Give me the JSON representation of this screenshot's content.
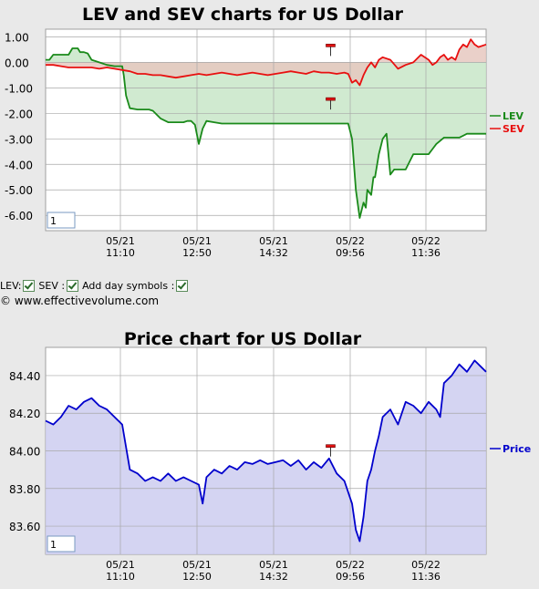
{
  "controls": {
    "lev_label": "LEV:",
    "sev_label": "SEV :",
    "day_symbols_label": "Add day symbols :"
  },
  "copyright": "© www.effectivevolume.com",
  "chart_data": [
    {
      "type": "line",
      "title": "LEV and SEV charts for US Dollar",
      "xlabel": "",
      "ylabel": "",
      "ylim": [
        -6.6,
        1.3
      ],
      "yticks": [
        1.0,
        0.0,
        -1.0,
        -2.0,
        -3.0,
        -4.0,
        -5.0,
        -6.0
      ],
      "ytick_labels": [
        "1.00",
        "0.00",
        "-1.00",
        "-2.00",
        "-3.00",
        "-4.00",
        "-5.00",
        "-6.00"
      ],
      "xticks": [
        {
          "date": "05/21",
          "time": "11:10"
        },
        {
          "date": "05/21",
          "time": "12:50"
        },
        {
          "date": "05/21",
          "time": "14:32"
        },
        {
          "date": "05/22",
          "time": "09:56"
        },
        {
          "date": "05/22",
          "time": "11:36"
        }
      ],
      "grid": true,
      "legend_position": "right",
      "input_value": "1",
      "day_markers": [
        3.72
      ],
      "series": [
        {
          "name": "LEV",
          "color": "#1a8a1a",
          "fill": "#c8e6c8",
          "x": [
            0,
            0.05,
            0.1,
            0.2,
            0.3,
            0.35,
            0.42,
            0.45,
            0.5,
            0.55,
            0.6,
            0.7,
            0.8,
            0.9,
            1.0,
            1.02,
            1.05,
            1.1,
            1.2,
            1.35,
            1.4,
            1.5,
            1.6,
            1.7,
            1.8,
            1.85,
            1.9,
            1.95,
            2.0,
            2.05,
            2.1,
            2.2,
            2.3,
            2.4,
            2.5,
            2.6,
            2.8,
            3.0,
            3.2,
            3.4,
            3.6,
            3.8,
            3.95,
            4.0,
            4.05,
            4.1,
            4.15,
            4.18,
            4.2,
            4.25,
            4.28,
            4.3,
            4.35,
            4.4,
            4.45,
            4.5,
            4.55,
            4.6,
            4.7,
            4.8,
            4.9,
            5.0,
            5.05,
            5.1,
            5.2,
            5.3,
            5.4,
            5.5,
            5.6,
            5.75
          ],
          "y": [
            0.1,
            0.1,
            0.3,
            0.3,
            0.3,
            0.55,
            0.55,
            0.4,
            0.4,
            0.35,
            0.1,
            0.0,
            -0.1,
            -0.15,
            -0.15,
            -0.5,
            -1.3,
            -1.8,
            -1.85,
            -1.85,
            -1.9,
            -2.2,
            -2.35,
            -2.35,
            -2.35,
            -2.3,
            -2.3,
            -2.45,
            -3.2,
            -2.6,
            -2.3,
            -2.35,
            -2.4,
            -2.4,
            -2.4,
            -2.4,
            -2.4,
            -2.4,
            -2.4,
            -2.4,
            -2.4,
            -2.4,
            -2.4,
            -3.0,
            -5.0,
            -6.1,
            -5.5,
            -5.7,
            -5.0,
            -5.2,
            -4.5,
            -4.5,
            -3.6,
            -3.0,
            -2.8,
            -4.4,
            -4.2,
            -4.2,
            -4.2,
            -3.6,
            -3.6,
            -3.6,
            -3.4,
            -3.2,
            -2.95,
            -2.95,
            -2.95,
            -2.8,
            -2.8,
            -2.8
          ]
        },
        {
          "name": "SEV",
          "color": "#e81010",
          "fill": "#e6c8c0",
          "x": [
            0,
            0.1,
            0.2,
            0.3,
            0.4,
            0.5,
            0.6,
            0.7,
            0.8,
            0.9,
            1.0,
            1.1,
            1.2,
            1.3,
            1.4,
            1.5,
            1.6,
            1.7,
            1.8,
            1.9,
            2.0,
            2.1,
            2.2,
            2.3,
            2.4,
            2.5,
            2.6,
            2.7,
            2.8,
            2.9,
            3.0,
            3.1,
            3.2,
            3.3,
            3.4,
            3.5,
            3.6,
            3.7,
            3.8,
            3.9,
            3.95,
            4.0,
            4.05,
            4.1,
            4.15,
            4.2,
            4.25,
            4.3,
            4.35,
            4.4,
            4.5,
            4.6,
            4.7,
            4.8,
            4.9,
            5.0,
            5.05,
            5.1,
            5.15,
            5.2,
            5.25,
            5.3,
            5.35,
            5.4,
            5.45,
            5.5,
            5.55,
            5.6,
            5.65,
            5.75
          ],
          "y": [
            -0.1,
            -0.1,
            -0.15,
            -0.2,
            -0.2,
            -0.2,
            -0.2,
            -0.25,
            -0.2,
            -0.25,
            -0.3,
            -0.35,
            -0.45,
            -0.45,
            -0.5,
            -0.5,
            -0.55,
            -0.6,
            -0.55,
            -0.5,
            -0.45,
            -0.5,
            -0.45,
            -0.4,
            -0.45,
            -0.5,
            -0.45,
            -0.4,
            -0.45,
            -0.5,
            -0.45,
            -0.4,
            -0.35,
            -0.4,
            -0.45,
            -0.35,
            -0.4,
            -0.4,
            -0.45,
            -0.4,
            -0.45,
            -0.8,
            -0.7,
            -0.9,
            -0.5,
            -0.2,
            0.0,
            -0.2,
            0.1,
            0.2,
            0.1,
            -0.25,
            -0.1,
            0.0,
            0.3,
            0.1,
            -0.1,
            0.0,
            0.2,
            0.3,
            0.1,
            0.2,
            0.1,
            0.5,
            0.7,
            0.6,
            0.9,
            0.7,
            0.6,
            0.7
          ]
        }
      ]
    },
    {
      "type": "area",
      "title": "Price chart for US Dollar",
      "xlabel": "",
      "ylabel": "",
      "ylim": [
        83.45,
        84.55
      ],
      "yticks": [
        84.4,
        84.2,
        84.0,
        83.8,
        83.6
      ],
      "ytick_labels": [
        "84.40",
        "84.20",
        "84.00",
        "83.80",
        "83.60"
      ],
      "xticks": [
        {
          "date": "05/21",
          "time": "11:10"
        },
        {
          "date": "05/21",
          "time": "12:50"
        },
        {
          "date": "05/21",
          "time": "14:32"
        },
        {
          "date": "05/22",
          "time": "09:56"
        },
        {
          "date": "05/22",
          "time": "11:36"
        }
      ],
      "grid": true,
      "legend_position": "right",
      "input_value": "1",
      "day_markers": [
        3.72
      ],
      "series": [
        {
          "name": "Price",
          "color": "#0000cc",
          "fill": "#cdcdf0",
          "x": [
            0,
            0.1,
            0.2,
            0.3,
            0.4,
            0.5,
            0.6,
            0.7,
            0.8,
            0.9,
            1.0,
            1.05,
            1.1,
            1.2,
            1.3,
            1.4,
            1.5,
            1.6,
            1.7,
            1.8,
            1.9,
            2.0,
            2.05,
            2.1,
            2.2,
            2.3,
            2.4,
            2.5,
            2.6,
            2.7,
            2.8,
            2.9,
            3.0,
            3.1,
            3.2,
            3.3,
            3.4,
            3.5,
            3.6,
            3.7,
            3.8,
            3.9,
            4.0,
            4.05,
            4.1,
            4.15,
            4.2,
            4.25,
            4.3,
            4.35,
            4.4,
            4.5,
            4.6,
            4.7,
            4.8,
            4.9,
            5.0,
            5.1,
            5.15,
            5.2,
            5.3,
            5.4,
            5.5,
            5.6,
            5.75
          ],
          "y": [
            84.16,
            84.14,
            84.18,
            84.24,
            84.22,
            84.26,
            84.28,
            84.24,
            84.22,
            84.18,
            84.14,
            84.02,
            83.9,
            83.88,
            83.84,
            83.86,
            83.84,
            83.88,
            83.84,
            83.86,
            83.84,
            83.82,
            83.72,
            83.86,
            83.9,
            83.88,
            83.92,
            83.9,
            83.94,
            83.93,
            83.95,
            83.93,
            83.94,
            83.95,
            83.92,
            83.95,
            83.9,
            83.94,
            83.91,
            83.96,
            83.88,
            83.84,
            83.72,
            83.58,
            83.52,
            83.65,
            83.84,
            83.9,
            84.0,
            84.08,
            84.18,
            84.22,
            84.14,
            84.26,
            84.24,
            84.2,
            84.26,
            84.22,
            84.18,
            84.36,
            84.4,
            84.46,
            84.42,
            84.48,
            84.42
          ]
        }
      ]
    }
  ]
}
